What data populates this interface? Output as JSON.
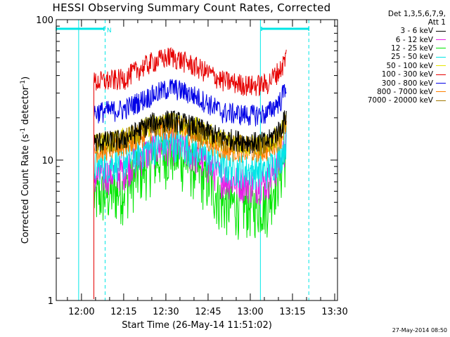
{
  "chart_data": {
    "type": "line",
    "title": "HESSI Observing Summary Count Rates, Corrected",
    "xlabel": "Start Time (26-May-14 11:51:02)",
    "ylabel_prefix": "Corrected Count Rate (s",
    "ylabel_sup1": "-1",
    "ylabel_mid": " detector",
    "ylabel_sup2": "-1",
    "ylabel_suffix": ")",
    "y_scale": "log",
    "ylim": [
      1,
      100
    ],
    "xlim_minutes": [
      711.033,
      811.0
    ],
    "x_ticks": [
      {
        "label": "12:00",
        "minutes": 720
      },
      {
        "label": "12:15",
        "minutes": 735
      },
      {
        "label": "12:30",
        "minutes": 750
      },
      {
        "label": "12:45",
        "minutes": 765
      },
      {
        "label": "13:00",
        "minutes": 780
      },
      {
        "label": "13:15",
        "minutes": 795
      },
      {
        "label": "13:30",
        "minutes": 810
      }
    ],
    "y_ticks": [
      {
        "label": "1",
        "value": 1
      },
      {
        "label": "10",
        "value": 10
      },
      {
        "label": "100",
        "value": 100
      }
    ],
    "legend": {
      "header": [
        "Det 1,3,5,6,7,9,",
        "Att 1"
      ],
      "placement": "right"
    },
    "night_intervals": [
      {
        "start": 711.033,
        "end": 719.0
      },
      {
        "start": 783.6,
        "end": 811.0
      }
    ],
    "night_markers_dashed": [
      728.4,
      800.8
    ],
    "saa_bars": [
      {
        "start": 711.033,
        "end": 728.0,
        "label": "N"
      },
      {
        "start": 784.0,
        "end": 800.8,
        "label": ""
      }
    ],
    "data_window_minutes": [
      724.4,
      792.8
    ],
    "series": [
      {
        "name": "3 - 6 keV",
        "color": "#000000",
        "x": [
          724.4,
          735,
          745,
          752,
          760,
          770,
          780,
          786,
          791,
          792.8
        ],
        "y": [
          13.5,
          14.0,
          18.5,
          19.5,
          17.5,
          14.5,
          13.5,
          13.5,
          17.0,
          21.0
        ]
      },
      {
        "name": "6 - 12 keV",
        "color": "#e61ee6",
        "x": [
          724.4,
          735,
          745,
          752,
          760,
          770,
          780,
          786,
          791,
          792.8
        ],
        "y": [
          7.5,
          8.5,
          12.0,
          13.0,
          11.0,
          7.5,
          6.8,
          7.0,
          10.0,
          13.5
        ]
      },
      {
        "name": "12 - 25 keV",
        "color": "#00e600",
        "x": [
          724.4,
          735,
          745,
          752,
          760,
          770,
          780,
          786,
          791,
          792.8
        ],
        "y": [
          5.5,
          6.2,
          10.0,
          11.5,
          9.0,
          5.0,
          4.8,
          5.0,
          8.5,
          12.0
        ]
      },
      {
        "name": "25 - 50 keV",
        "color": "#00e6e6",
        "x": [
          724.4,
          735,
          745,
          752,
          760,
          770,
          780,
          786,
          791,
          792.8
        ],
        "y": [
          9.0,
          9.8,
          12.5,
          13.5,
          12.0,
          9.0,
          8.5,
          8.5,
          11.0,
          14.0
        ]
      },
      {
        "name": "50 - 100 keV",
        "color": "#e6e600",
        "x": [
          724.4,
          735,
          745,
          752,
          760,
          770,
          780,
          786,
          791,
          792.8
        ],
        "y": [
          13.0,
          14.5,
          18.0,
          19.0,
          17.5,
          14.0,
          12.8,
          13.0,
          16.0,
          20.0
        ]
      },
      {
        "name": "100 - 300 keV",
        "color": "#e60000",
        "x": [
          724.4,
          735,
          745,
          752,
          760,
          770,
          780,
          786,
          791,
          792.8
        ],
        "y": [
          36.0,
          38.0,
          50.0,
          55.0,
          47.0,
          37.0,
          34.0,
          35.0,
          45.0,
          55.0
        ]
      },
      {
        "name": "300 - 800 keV",
        "color": "#0000e6",
        "x": [
          724.4,
          735,
          745,
          752,
          760,
          770,
          780,
          786,
          791,
          792.8
        ],
        "y": [
          22.0,
          23.0,
          29.0,
          33.0,
          29.0,
          22.0,
          21.0,
          21.5,
          27.0,
          35.0
        ]
      },
      {
        "name": "800 - 7000 keV",
        "color": "#ff8000",
        "x": [
          724.4,
          735,
          745,
          752,
          760,
          770,
          780,
          786,
          791,
          792.8
        ],
        "y": [
          11.5,
          12.5,
          16.0,
          17.0,
          15.0,
          12.0,
          11.5,
          11.8,
          14.5,
          18.0
        ]
      },
      {
        "name": "7000 - 20000 keV",
        "color": "#a07800",
        "x": [
          724.4,
          735,
          745,
          752,
          760,
          770,
          780,
          786,
          791,
          792.8
        ],
        "y": [
          13.0,
          14.0,
          17.5,
          18.5,
          16.5,
          13.5,
          12.5,
          12.8,
          15.5,
          19.5
        ]
      }
    ]
  },
  "footer": {
    "date": "27-May-2014 08:50"
  }
}
